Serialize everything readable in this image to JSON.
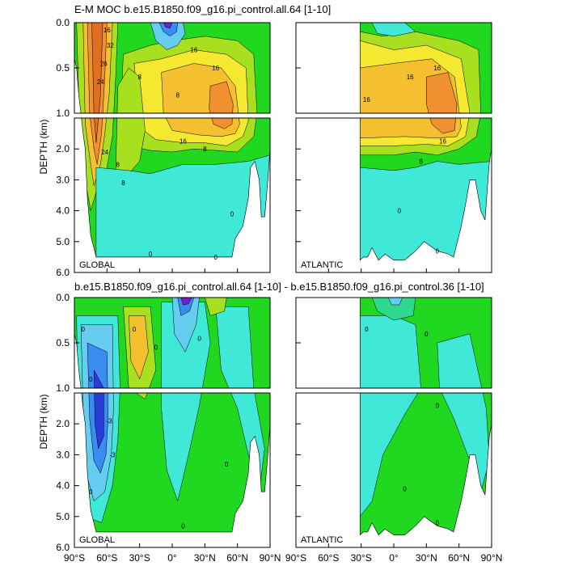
{
  "chart_data": [
    {
      "type": "heatmap",
      "title": "E-M MOC  b.e15.B1850.f09_g16.pi_control.all.64 [1-10]",
      "ylabel": "DEPTH (km)",
      "upper_depth_range": [
        0.0,
        1.0
      ],
      "lower_depth_range": [
        1.0,
        6.0
      ],
      "upper_ticks": [
        "0.0",
        "0.5",
        "1.0"
      ],
      "lower_ticks": [
        "2.0",
        "3.0",
        "4.0",
        "5.0",
        "6.0"
      ],
      "panels": [
        {
          "name": "GLOBAL",
          "lat_range": [
            -90,
            90
          ],
          "contour_labels": [
            {
              "text": "16",
              "lat": -60,
              "depth": 0.08
            },
            {
              "text": "32",
              "lat": -57,
              "depth": 0.25
            },
            {
              "text": "26",
              "lat": -63,
              "depth": 0.45
            },
            {
              "text": "24",
              "lat": -66,
              "depth": 0.65
            },
            {
              "text": "8",
              "lat": -30,
              "depth": 0.6
            },
            {
              "text": "16",
              "lat": 20,
              "depth": 0.3
            },
            {
              "text": "16",
              "lat": 40,
              "depth": 0.5
            },
            {
              "text": "8",
              "lat": 5,
              "depth": 0.8
            },
            {
              "text": "16",
              "lat": 10,
              "depth": 1.75
            },
            {
              "text": "8",
              "lat": 30,
              "depth": 2.0
            },
            {
              "text": "8",
              "lat": -50,
              "depth": 2.5
            },
            {
              "text": "24",
              "lat": -62,
              "depth": 2.1
            },
            {
              "text": "8",
              "lat": -45,
              "depth": 3.1
            },
            {
              "text": "0",
              "lat": 40,
              "depth": 5.5
            },
            {
              "text": "0",
              "lat": -20,
              "depth": 5.4
            },
            {
              "text": "0",
              "lat": 55,
              "depth": 4.1
            }
          ]
        },
        {
          "name": "ATLANTIC",
          "lat_range": [
            -30,
            90
          ],
          "contour_labels": [
            {
              "text": "16",
              "lat": 15,
              "depth": 0.6
            },
            {
              "text": "16",
              "lat": 40,
              "depth": 0.5
            },
            {
              "text": "16",
              "lat": -25,
              "depth": 0.85
            },
            {
              "text": "16",
              "lat": 45,
              "depth": 1.75
            },
            {
              "text": "8",
              "lat": 25,
              "depth": 2.4
            },
            {
              "text": "0",
              "lat": 5,
              "depth": 4.0
            },
            {
              "text": "0",
              "lat": 40,
              "depth": 5.3
            }
          ]
        }
      ]
    },
    {
      "type": "heatmap",
      "title": "b.e15.B1850.f09_g16.pi_control.all.64 [1-10] - b.e15.B1850.f09_g16.pi_control.36 [1-10]",
      "ylabel": "DEPTH (km)",
      "xlabel_ticks": [
        "90°S",
        "60°S",
        "30°S",
        "0°",
        "30°N",
        "60°N",
        "90°N"
      ],
      "upper_ticks": [
        "0.0",
        "0.5",
        "1.0"
      ],
      "lower_ticks": [
        "2.0",
        "3.0",
        "4.0",
        "5.0",
        "6.0"
      ],
      "panels": [
        {
          "name": "GLOBAL",
          "lat_range": [
            -90,
            90
          ],
          "contour_labels": [
            {
              "text": "0",
              "lat": -82,
              "depth": 0.35
            },
            {
              "text": "0",
              "lat": -75,
              "depth": 0.9
            },
            {
              "text": "-3",
              "lat": -58,
              "depth": 1.9
            },
            {
              "text": "-3",
              "lat": -55,
              "depth": 3.0
            },
            {
              "text": "0",
              "lat": -35,
              "depth": 0.35
            },
            {
              "text": "0",
              "lat": -15,
              "depth": 0.55
            },
            {
              "text": "0",
              "lat": 25,
              "depth": 0.45
            },
            {
              "text": "0",
              "lat": -75,
              "depth": 4.2
            },
            {
              "text": "0",
              "lat": 10,
              "depth": 5.3
            },
            {
              "text": "0",
              "lat": 50,
              "depth": 3.3
            }
          ]
        },
        {
          "name": "ATLANTIC",
          "lat_range": [
            -30,
            90
          ],
          "contour_labels": [
            {
              "text": "0",
              "lat": -25,
              "depth": 0.35
            },
            {
              "text": "0",
              "lat": 30,
              "depth": 0.4
            },
            {
              "text": "0",
              "lat": 40,
              "depth": 1.4
            },
            {
              "text": "0",
              "lat": 10,
              "depth": 4.1
            },
            {
              "text": "0",
              "lat": 40,
              "depth": 5.2
            }
          ]
        }
      ]
    }
  ],
  "colors": {
    "deep_blue": "#2a3cd8",
    "blue": "#3a8cf0",
    "light_blue": "#66ccf0",
    "cyan": "#40e8d8",
    "teal_green": "#2ed88c",
    "green": "#20d820",
    "yellow_green": "#a8e020",
    "yellow": "#f4e830",
    "gold": "#f4c030",
    "orange": "#f09030",
    "dark_orange": "#e07020",
    "magenta": "#c828c8",
    "purple": "#7020d0"
  }
}
